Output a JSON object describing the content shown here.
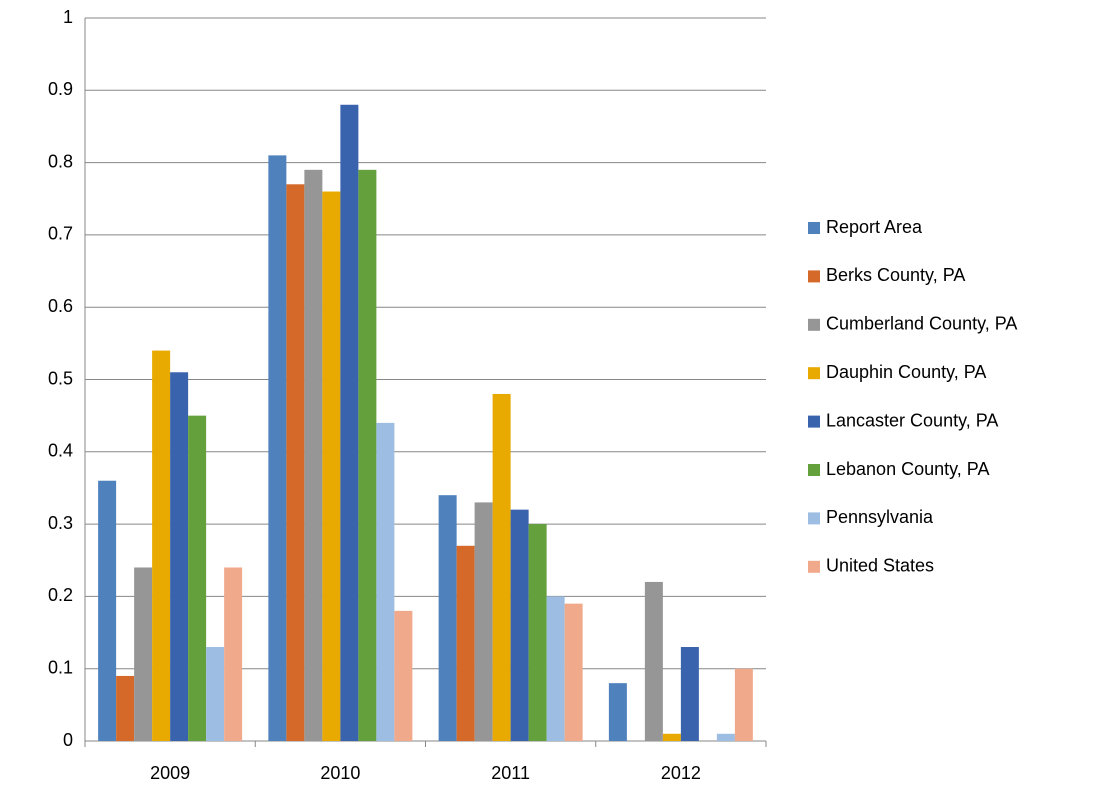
{
  "chart_data": {
    "type": "bar",
    "categories": [
      "2009",
      "2010",
      "2011",
      "2012"
    ],
    "series": [
      {
        "name": "Report Area",
        "color": "#4f81bd",
        "values": [
          0.36,
          0.81,
          0.34,
          0.08
        ]
      },
      {
        "name": "Berks County, PA",
        "color": "#d4692a",
        "values": [
          0.09,
          0.77,
          0.27,
          null
        ]
      },
      {
        "name": "Cumberland County, PA",
        "color": "#969696",
        "values": [
          0.24,
          0.79,
          0.33,
          0.22
        ]
      },
      {
        "name": "Dauphin County, PA",
        "color": "#e8a900",
        "values": [
          0.54,
          0.76,
          0.48,
          0.01
        ]
      },
      {
        "name": "Lancaster County, PA",
        "color": "#3a63ad",
        "values": [
          0.51,
          0.88,
          0.32,
          0.13
        ]
      },
      {
        "name": "Lebanon County, PA",
        "color": "#64a03c",
        "values": [
          0.45,
          0.79,
          0.3,
          null
        ]
      },
      {
        "name": "Pennsylvania",
        "color": "#9dbde2",
        "values": [
          0.13,
          0.44,
          0.2,
          0.01
        ]
      },
      {
        "name": "United States",
        "color": "#f1a98c",
        "values": [
          0.24,
          0.18,
          0.19,
          0.1
        ]
      }
    ],
    "ylim": [
      0,
      1
    ],
    "yticks": [
      0,
      0.1,
      0.2,
      0.3,
      0.4,
      0.5,
      0.6,
      0.7,
      0.8,
      0.9,
      1
    ],
    "grid": true,
    "legend": "right"
  }
}
